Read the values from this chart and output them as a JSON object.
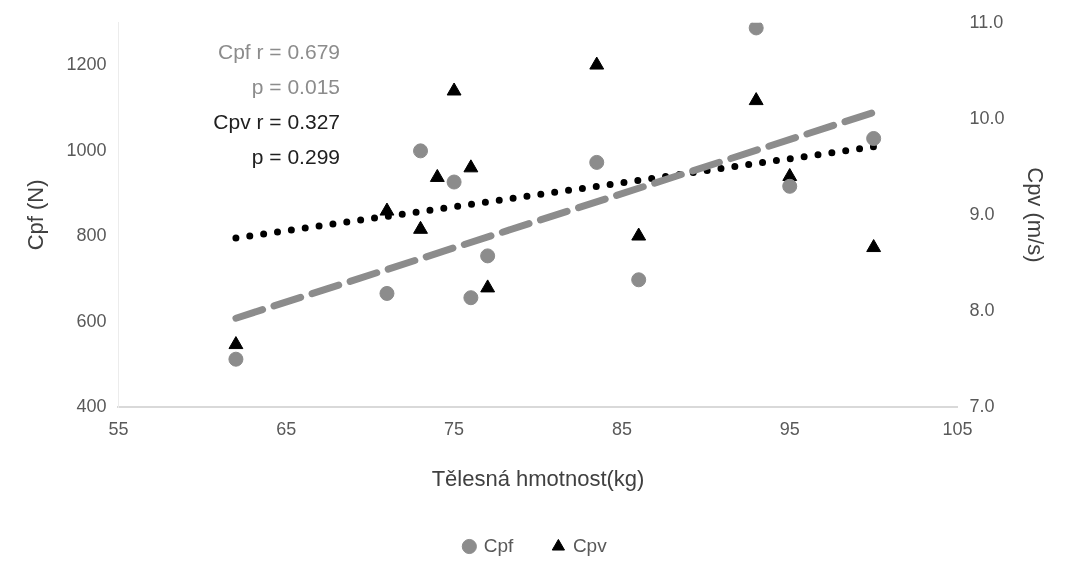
{
  "chart_data": {
    "type": "scatter",
    "xlabel": "Tělesná hmotnost(kg)",
    "ylabel": "Cpf (N)",
    "y2label": "Cpv (m/s)",
    "xlim": [
      55,
      105
    ],
    "xticks": [
      55,
      65,
      75,
      85,
      95,
      105
    ],
    "ylim": [
      400,
      1300
    ],
    "yticks": [
      400,
      600,
      800,
      1000,
      1200
    ],
    "y2lim": [
      7,
      11
    ],
    "y2ticks": [
      {
        "value": 7,
        "label": "7.0"
      },
      {
        "value": 8,
        "label": "8.0"
      },
      {
        "value": 9,
        "label": "9.0"
      },
      {
        "value": 10,
        "label": "10.0"
      },
      {
        "value": 11,
        "label": "11.0"
      }
    ],
    "grid": false,
    "legend": "bottom",
    "annotations": [
      "Cpf  r = 0.679",
      "p = 0.015",
      "Cpv r = 0.327",
      "p = 0.299"
    ],
    "series": [
      {
        "name": "Cpf",
        "color": "#8c8c8c",
        "marker": "circle",
        "x": [
          62,
          71,
          73,
          75,
          76,
          77,
          83.5,
          86,
          93,
          95,
          100
        ],
        "values": [
          512,
          666,
          1000,
          927,
          656,
          754,
          973,
          698,
          1288,
          917,
          1029
        ]
      },
      {
        "name": "Cpv",
        "color": "#000000",
        "marker": "triangle",
        "axis": "y2",
        "x": [
          62,
          71,
          73,
          74,
          75,
          76,
          77,
          83.5,
          86,
          93,
          95,
          100
        ],
        "values": [
          7.65,
          9.04,
          8.85,
          9.39,
          10.29,
          9.49,
          8.24,
          10.56,
          8.78,
          10.19,
          9.4,
          8.66
        ]
      },
      {
        "type": "line",
        "color": "#8c8c8c",
        "line_style": "dashed",
        "marker": "none",
        "x": [
          62,
          100
        ],
        "values": [
          608,
          1090
        ]
      },
      {
        "type": "line",
        "color": "#000000",
        "line_style": "dotted",
        "marker": "none",
        "axis": "y2",
        "x": [
          62,
          100
        ],
        "values": [
          8.76,
          9.71
        ]
      }
    ]
  }
}
